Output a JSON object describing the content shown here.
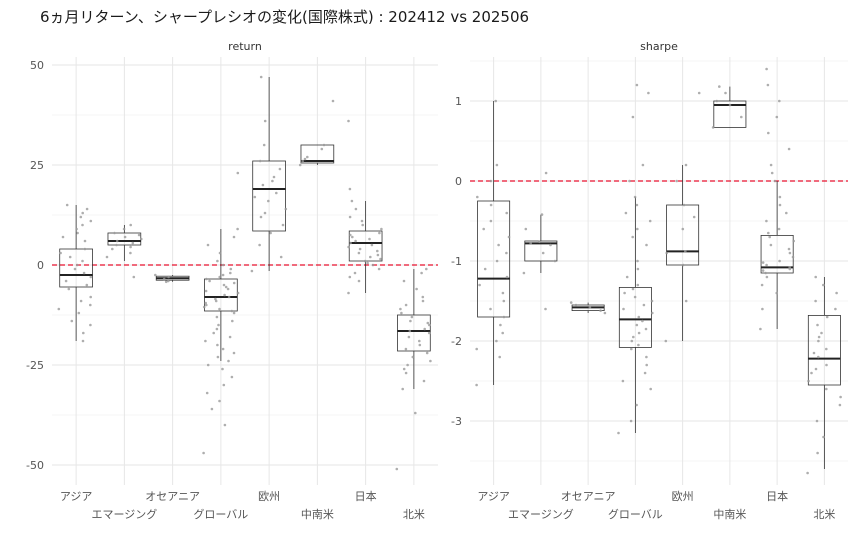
{
  "title": "6ヵ月リターン、シャープレシオの変化(国際株式) : 202412 vs 202506",
  "chart_data": [
    {
      "type": "box",
      "panel": "return",
      "categories": [
        "アジア",
        "エマージング",
        "オセアニア",
        "グローバル",
        "欧州",
        "中南米",
        "日本",
        "北米"
      ],
      "ylim": [
        -55,
        52
      ],
      "yticks": [
        50,
        25,
        0,
        -25,
        -50
      ],
      "reference_line": 0,
      "boxes": [
        {
          "q1": -5.5,
          "median": -2.5,
          "q3": 4,
          "whisker_low": -19,
          "whisker_high": 15
        },
        {
          "q1": 5,
          "median": 6,
          "q3": 8,
          "whisker_low": 1,
          "whisker_high": 10
        },
        {
          "q1": -3.8,
          "median": -3.3,
          "q3": -2.8,
          "whisker_low": -4.2,
          "whisker_high": -2.5
        },
        {
          "q1": -11.5,
          "median": -8,
          "q3": -3.5,
          "whisker_low": -24,
          "whisker_high": 9
        },
        {
          "q1": 8.5,
          "median": 19,
          "q3": 26,
          "whisker_low": -1.5,
          "whisker_high": 47
        },
        {
          "q1": 25.5,
          "median": 26,
          "q3": 30,
          "whisker_low": 25,
          "whisker_high": 30
        },
        {
          "q1": 1,
          "median": 5.5,
          "q3": 8.5,
          "whisker_low": -7,
          "whisker_high": 16
        },
        {
          "q1": -21.5,
          "median": -16.5,
          "q3": -12.5,
          "whisker_low": -31,
          "whisker_high": -1
        }
      ],
      "points": [
        [
          -11,
          -8,
          -6,
          -4,
          -2,
          0,
          2,
          4,
          6,
          8,
          10,
          12,
          14,
          15,
          -14,
          -17,
          -19,
          3,
          1,
          -1,
          -3,
          -5,
          7,
          9,
          11,
          13,
          -9,
          -12,
          -15,
          -10
        ],
        [
          2,
          4,
          5,
          6,
          7,
          8,
          9,
          10,
          5.5,
          6.5,
          7.5,
          4.5,
          3,
          -3
        ],
        [
          -2.5,
          -3,
          -3.5,
          -4,
          -4.2
        ],
        [
          -47,
          -40,
          -36,
          -34,
          -32,
          -30,
          -28,
          -26,
          -24,
          -22,
          -20,
          -18,
          -16,
          -14,
          -13,
          -12,
          -11,
          -10,
          -9,
          -8,
          -7,
          -6,
          -5,
          -4,
          -3,
          -2,
          -1,
          0,
          1,
          3,
          5,
          7,
          9,
          23,
          -15,
          -17,
          -19,
          -21,
          -23,
          -25,
          -11.5,
          -10.5,
          -9.5,
          -8.5,
          -7.5,
          -6.5,
          -5.5,
          -4.5,
          -3.5,
          -2.5
        ],
        [
          -1.5,
          2,
          5,
          8,
          10,
          12,
          14,
          16,
          18,
          20,
          22,
          24,
          26,
          30,
          36,
          47,
          13,
          17,
          21
        ],
        [
          25,
          26,
          27,
          29,
          30,
          41,
          26.5
        ],
        [
          -7,
          -4,
          -2,
          0,
          1,
          2,
          3,
          4,
          5,
          6,
          7,
          8,
          9,
          10,
          11,
          12,
          14,
          16,
          19,
          36,
          5.5,
          6.5,
          7.5,
          3.5,
          4.5,
          2.5,
          1.5,
          0.5,
          -1,
          -3
        ],
        [
          -51,
          -37,
          -31,
          -29,
          -27,
          -25,
          -23,
          -21,
          -20,
          -19,
          -18,
          -17,
          -16,
          -15,
          -14,
          -13,
          -12,
          -11,
          -10,
          -9,
          -8,
          -6,
          -4,
          -2,
          -1,
          -22,
          -24,
          -26,
          -16.5,
          -14.5
        ]
      ]
    },
    {
      "type": "box",
      "panel": "sharpe",
      "categories": [
        "アジア",
        "エマージング",
        "オセアニア",
        "グローバル",
        "欧州",
        "中南米",
        "日本",
        "北米"
      ],
      "ylim": [
        -3.8,
        1.55
      ],
      "yticks": [
        1,
        0,
        -1,
        -2,
        -3
      ],
      "reference_line": 0,
      "boxes": [
        {
          "q1": -1.7,
          "median": -1.22,
          "q3": -0.25,
          "whisker_low": -2.55,
          "whisker_high": 1.0
        },
        {
          "q1": -1.0,
          "median": -0.78,
          "q3": -0.75,
          "whisker_low": -1.15,
          "whisker_high": -0.42
        },
        {
          "q1": -1.62,
          "median": -1.58,
          "q3": -1.55,
          "whisker_low": -1.65,
          "whisker_high": -1.52
        },
        {
          "q1": -2.08,
          "median": -1.73,
          "q3": -1.33,
          "whisker_low": -3.15,
          "whisker_high": -0.2
        },
        {
          "q1": -1.05,
          "median": -0.88,
          "q3": -0.3,
          "whisker_low": -2.0,
          "whisker_high": 0.2
        },
        {
          "q1": 0.67,
          "median": 0.95,
          "q3": 1.0,
          "whisker_low": 0.67,
          "whisker_high": 1.18
        },
        {
          "q1": -1.15,
          "median": -1.08,
          "q3": -0.68,
          "whisker_low": -1.85,
          "whisker_high": 0.0
        },
        {
          "q1": -2.55,
          "median": -2.22,
          "q3": -1.68,
          "whisker_low": -3.6,
          "whisker_high": -1.2
        }
      ],
      "points": [
        [
          -2.55,
          -2.2,
          -2.0,
          -1.8,
          -1.6,
          -1.4,
          -1.2,
          -1.0,
          -0.8,
          -0.6,
          -0.4,
          -0.2,
          0.0,
          0.2,
          1.0,
          -1.3,
          -1.5,
          -1.7,
          -0.9,
          -0.7,
          -0.5,
          -0.3,
          -1.1,
          -1.9,
          -2.1
        ],
        [
          -1.15,
          -1.0,
          -0.9,
          -0.8,
          -0.78,
          -0.76,
          -0.6,
          -0.42,
          -1.6,
          0.1
        ],
        [
          -1.52,
          -1.55,
          -1.58,
          -1.62,
          -1.65
        ],
        [
          -3.15,
          -3.0,
          -2.8,
          -2.6,
          -2.4,
          -2.2,
          -2.1,
          -2.0,
          -1.9,
          -1.8,
          -1.7,
          -1.6,
          -1.5,
          -1.4,
          -1.3,
          -1.2,
          -1.0,
          -0.8,
          -0.6,
          -0.4,
          -0.2,
          0.0,
          0.2,
          0.8,
          1.2,
          1.1,
          -1.75,
          -1.65,
          -1.55,
          -1.45,
          -1.35,
          -1.85,
          -1.95,
          -2.05,
          -2.3,
          -2.5,
          -0.7,
          -0.5,
          -0.3,
          -1.1
        ],
        [
          -2.0,
          -1.5,
          -1.05,
          -0.9,
          -0.88,
          -0.6,
          -0.3,
          0.0,
          0.2,
          1.1,
          -0.45
        ],
        [
          0.67,
          0.8,
          0.95,
          1.0,
          1.1,
          1.18
        ],
        [
          -1.85,
          -1.6,
          -1.4,
          -1.2,
          -1.15,
          -1.1,
          -1.08,
          -1.05,
          -1.0,
          -0.9,
          -0.8,
          -0.7,
          -0.6,
          -0.4,
          -0.2,
          0.0,
          0.2,
          0.4,
          0.6,
          0.8,
          1.0,
          1.2,
          1.4,
          -1.12,
          -1.02,
          -0.95,
          -0.85,
          -0.75,
          -0.65,
          -1.3,
          -0.5,
          0.1,
          -0.3
        ],
        [
          -3.65,
          -3.4,
          -3.2,
          -3.0,
          -2.8,
          -2.6,
          -2.5,
          -2.4,
          -2.3,
          -2.2,
          -2.1,
          -2.0,
          -1.9,
          -1.8,
          -1.7,
          -1.6,
          -1.5,
          -1.4,
          -1.3,
          -1.2,
          -2.35,
          -2.15,
          -1.95,
          -2.7
        ]
      ]
    }
  ]
}
